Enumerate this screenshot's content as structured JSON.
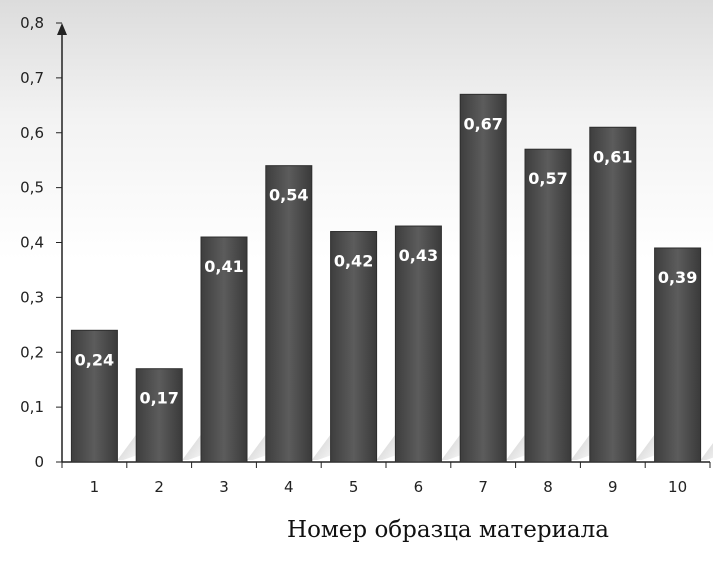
{
  "chart_data": {
    "type": "bar",
    "title": "",
    "xlabel": "Номер образца материала",
    "ylabel": "",
    "categories": [
      "1",
      "2",
      "3",
      "4",
      "5",
      "6",
      "7",
      "8",
      "9",
      "10"
    ],
    "values": [
      0.24,
      0.17,
      0.41,
      0.54,
      0.42,
      0.43,
      0.67,
      0.57,
      0.61,
      0.39
    ],
    "data_labels": [
      "0,24",
      "0,17",
      "0,41",
      "0,54",
      "0,42",
      "0,43",
      "0,67",
      "0,57",
      "0,61",
      "0,39"
    ],
    "yticks": [
      0,
      0.1,
      0.2,
      0.3,
      0.4,
      0.5,
      0.6,
      0.7,
      0.8
    ],
    "ytick_labels": [
      "0",
      "0,1",
      "0,2",
      "0,3",
      "0,4",
      "0,5",
      "0,6",
      "0,7",
      "0,8"
    ],
    "ylim": [
      0,
      0.8
    ],
    "grid": false,
    "legend": "none",
    "colors": {
      "bar": "#505050",
      "bar_edge": "#2e2e2e",
      "label": "#ffffff",
      "axis": "#222222"
    }
  }
}
